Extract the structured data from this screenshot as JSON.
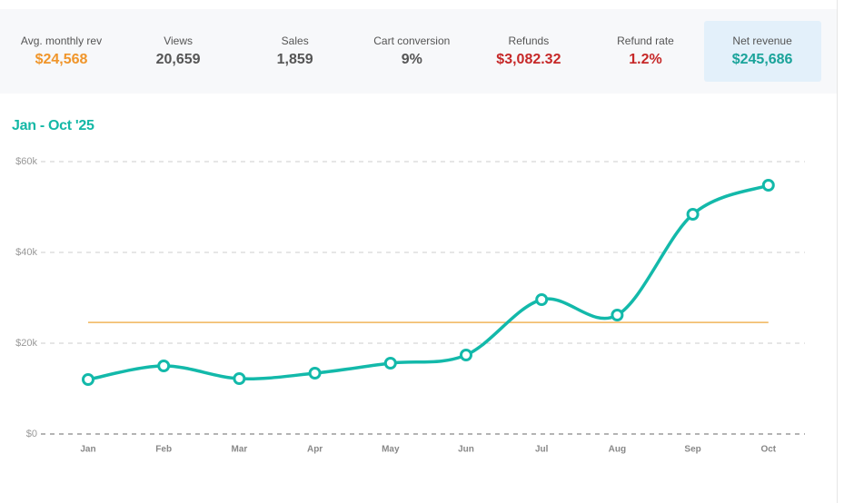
{
  "kpis": [
    {
      "label": "Avg. monthly rev",
      "value": "$24,568",
      "color": "#f0952a"
    },
    {
      "label": "Views",
      "value": "20,659",
      "color": "#555555"
    },
    {
      "label": "Sales",
      "value": "1,859",
      "color": "#555555"
    },
    {
      "label": "Cart conversion",
      "value": "9%",
      "color": "#555555"
    },
    {
      "label": "Refunds",
      "value": "$3,082.32",
      "color": "#c62828"
    },
    {
      "label": "Refund rate",
      "value": "1.2%",
      "color": "#c62828"
    },
    {
      "label": "Net revenue",
      "value": "$245,686",
      "color": "#1aa39a",
      "highlight": "#e3f0fa"
    }
  ],
  "chart_data": {
    "type": "line",
    "title": "Jan - Oct '25",
    "categories": [
      "Jan",
      "Feb",
      "Mar",
      "Apr",
      "May",
      "Jun",
      "Jul",
      "Aug",
      "Sep",
      "Oct"
    ],
    "values": [
      12000,
      15000,
      12200,
      13400,
      15600,
      17400,
      29600,
      26200,
      48400,
      54800
    ],
    "color": "#13b9aa",
    "reference_line": 24568,
    "reference_color": "#f0b55a",
    "ylim": [
      0,
      60000
    ],
    "yticks": [
      {
        "value": 0,
        "label": "$0"
      },
      {
        "value": 20000,
        "label": "$20k"
      },
      {
        "value": 40000,
        "label": "$40k"
      },
      {
        "value": 60000,
        "label": "$60k"
      }
    ],
    "grid": true
  }
}
